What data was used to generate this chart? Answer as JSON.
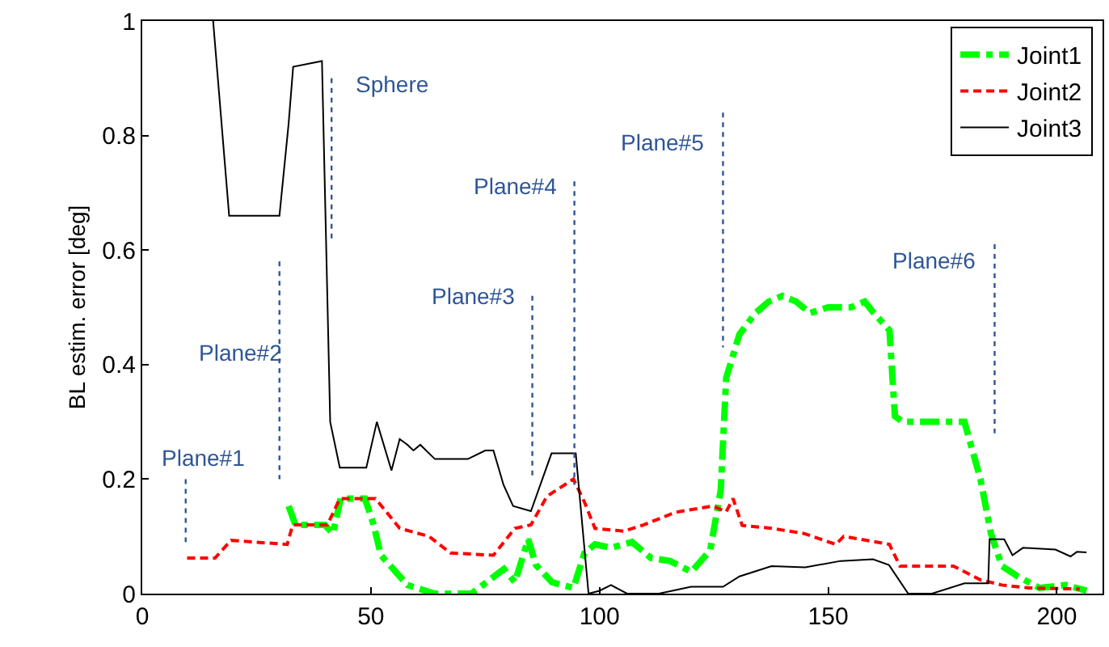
{
  "chart_data": {
    "type": "line",
    "ylabel": "BL estim. error [deg]",
    "xlim": [
      0,
      210
    ],
    "ylim": [
      0,
      1
    ],
    "xticks": [
      0,
      50,
      100,
      150,
      200
    ],
    "yticks": [
      0,
      0.2,
      0.4,
      0.6,
      0.8,
      1
    ],
    "legend": "top right",
    "marker": "none",
    "series": [
      {
        "name": "Joint1",
        "color": "#00ff00",
        "line_style": "dashdot",
        "x": [
          32,
          33.5,
          39.9,
          41.7,
          43.4,
          48.7,
          50.5,
          52.2,
          58,
          63.9,
          67.4,
          72,
          79.1,
          81.5,
          84.4,
          86.1,
          89.6,
          94.3,
          96.7,
          99,
          102.5,
          107.1,
          111.3,
          115.4,
          120.1,
          124.2,
          126.5,
          127.7,
          130.6,
          134.1,
          137,
          140,
          143,
          146,
          150,
          155,
          158,
          160,
          163.4,
          164.6,
          166.3,
          179.8,
          183.3,
          185.6,
          188,
          191.5,
          196.2,
          202,
          206.5
        ],
        "values": [
          0.153,
          0.12,
          0.12,
          0.105,
          0.166,
          0.166,
          0.123,
          0.067,
          0.015,
          0.0,
          0.0,
          0.0,
          0.043,
          0.02,
          0.095,
          0.05,
          0.02,
          0.01,
          0.071,
          0.086,
          0.08,
          0.09,
          0.062,
          0.057,
          0.038,
          0.076,
          0.18,
          0.377,
          0.453,
          0.49,
          0.51,
          0.52,
          0.51,
          0.49,
          0.5,
          0.5,
          0.51,
          0.49,
          0.46,
          0.31,
          0.3,
          0.3,
          0.2,
          0.105,
          0.048,
          0.03,
          0.01,
          0.015,
          0.005
        ]
      },
      {
        "name": "Joint2",
        "color": "#ff0000",
        "line_style": "dashed",
        "x": [
          9.8,
          15.9,
          19.4,
          31.7,
          32.9,
          40.5,
          43.2,
          51,
          56.3,
          62.7,
          67.4,
          76.8,
          81.5,
          85,
          88.5,
          94.3,
          96.7,
          99,
          105.3,
          107.2,
          109.6,
          116.6,
          124.8,
          127.7,
          129.2,
          131.2,
          137.6,
          144.7,
          151.7,
          153.4,
          163.4,
          165.7,
          177.4,
          183.3,
          188,
          193.8,
          205
        ],
        "values": [
          0.062,
          0.062,
          0.093,
          0.086,
          0.12,
          0.12,
          0.166,
          0.166,
          0.114,
          0.1,
          0.071,
          0.067,
          0.114,
          0.12,
          0.17,
          0.2,
          0.16,
          0.114,
          0.109,
          0.114,
          0.12,
          0.142,
          0.153,
          0.143,
          0.166,
          0.119,
          0.114,
          0.105,
          0.086,
          0.1,
          0.086,
          0.048,
          0.048,
          0.024,
          0.015,
          0.01,
          0.008
        ]
      },
      {
        "name": "Joint3",
        "color": "#000000",
        "line_style": "solid",
        "x": [
          15.5,
          19,
          30,
          32,
          33,
          39.3,
          41.1,
          43.2,
          49,
          51.3,
          54.5,
          56.3,
          58,
          59.3,
          60.8,
          64,
          71.2,
          75,
          76.8,
          79,
          81.1,
          85,
          89.5,
          94.8,
          97.6,
          100,
          102.5,
          106,
          113,
          120,
          127,
          130.6,
          137.6,
          145,
          152.7,
          159.8,
          163.3,
          167.5,
          172.7,
          179.8,
          185,
          185.3,
          188.5,
          190.3,
          192.6,
          199.7,
          203,
          204.4,
          206.5
        ],
        "values": [
          1,
          0.66,
          0.66,
          0.82,
          0.92,
          0.93,
          0.3,
          0.22,
          0.22,
          0.3,
          0.215,
          0.27,
          0.26,
          0.25,
          0.26,
          0.235,
          0.235,
          0.25,
          0.25,
          0.19,
          0.153,
          0.144,
          0.245,
          0.245,
          0.0,
          0.005,
          0.015,
          0.0,
          0.0,
          0.012,
          0.012,
          0.03,
          0.048,
          0.046,
          0.057,
          0.06,
          0.05,
          0.0,
          0.0,
          0.018,
          0.018,
          0.095,
          0.095,
          0.067,
          0.08,
          0.077,
          0.065,
          0.073,
          0.072
        ]
      },
      {
        "color": "#2f5597",
        "line_style": "dotted",
        "x": [
          9.5,
          9.5
        ],
        "values": [
          0.2,
          0.09
        ]
      },
      {
        "color": "#2f5597",
        "line_style": "dotted",
        "x": [
          30,
          30,
          30
        ],
        "values": [
          0.58,
          0.42,
          0.2
        ]
      },
      {
        "color": "#2f5597",
        "line_style": "dotted",
        "x": [
          41.4,
          41.4
        ],
        "values": [
          0.9,
          0.62
        ]
      },
      {
        "color": "#2f5597",
        "line_style": "dotted",
        "x": [
          85.3,
          85.3
        ],
        "values": [
          0.52,
          0.2
        ]
      },
      {
        "color": "#2f5597",
        "line_style": "dotted",
        "x": [
          94.5,
          94.5
        ],
        "values": [
          0.72,
          0.19
        ]
      },
      {
        "color": "#2f5597",
        "line_style": "dotted",
        "x": [
          127,
          127
        ],
        "values": [
          0.84,
          0.43
        ]
      },
      {
        "color": "#2f5597",
        "line_style": "dotted",
        "x": [
          186.4,
          186.4
        ],
        "values": [
          0.61,
          0.28
        ]
      }
    ],
    "annotations": [
      {
        "text": "Plane#1",
        "x": 9.5,
        "y": 0.2
      },
      {
        "text": "Plane#2",
        "x": 30,
        "y": 0.42
      },
      {
        "text": "Sphere",
        "x": 41.4,
        "y": 0.9
      },
      {
        "text": "Plane#3",
        "x": 85.3,
        "y": 0.52
      },
      {
        "text": "Plane#4",
        "x": 94.5,
        "y": 0.72
      },
      {
        "text": "Plane#5",
        "x": 127,
        "y": 0.84
      },
      {
        "text": "Plane#6",
        "x": 186.4,
        "y": 0.61
      }
    ]
  }
}
